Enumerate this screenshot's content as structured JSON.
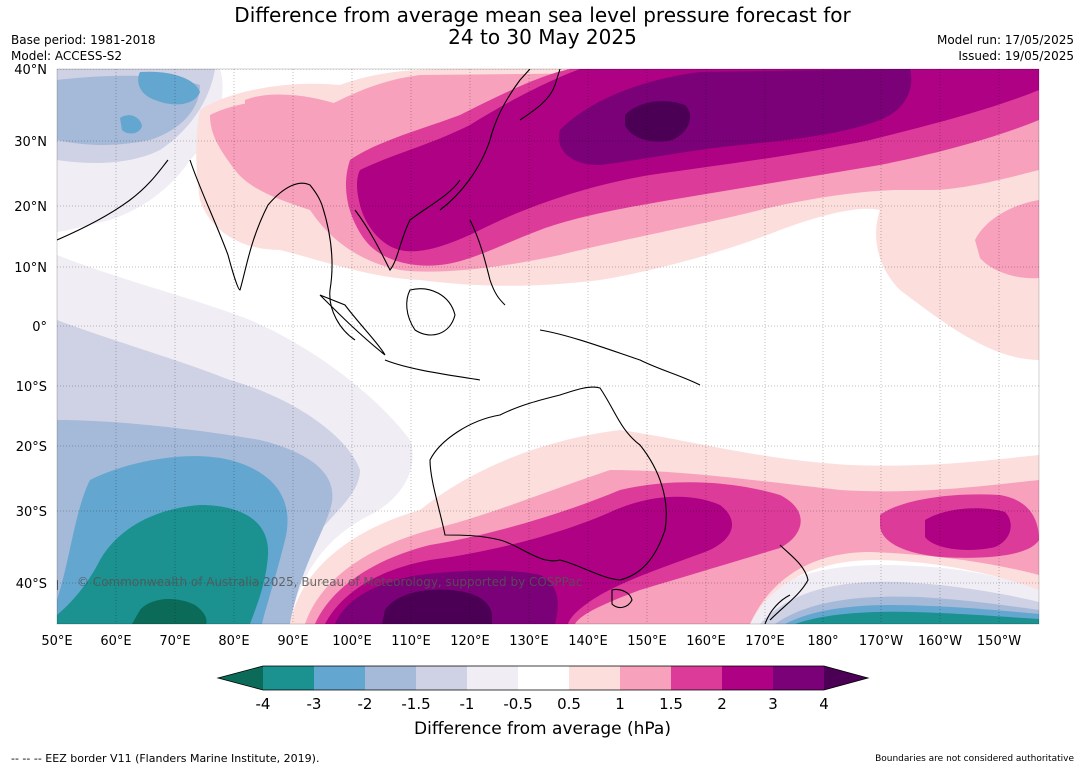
{
  "title_line1": "Difference from average mean sea level pressure forecast for",
  "title_line2": "24 to 30 May 2025",
  "base_period": "Base period: 1981-2018",
  "model": "Model: ACCESS-S2",
  "model_run": "Model run: 17/05/2025",
  "issued": "Issued: 19/05/2025",
  "copyright": "© Commonwealth of Australia 2025, Bureau of Meteorology, supported by COSPPac",
  "lat_labels": [
    "40°N",
    "30°N",
    "20°N",
    "10°N",
    "0°",
    "10°S",
    "20°S",
    "30°S",
    "40°S"
  ],
  "lon_labels": [
    "50°E",
    "60°E",
    "70°E",
    "80°E",
    "90°E",
    "100°E",
    "110°E",
    "120°E",
    "130°E",
    "140°E",
    "150°E",
    "160°E",
    "170°E",
    "180°",
    "170°W",
    "160°W",
    "150°W"
  ],
  "colorbar": {
    "tick_labels": [
      "-4",
      "-3",
      "-2",
      "-1.5",
      "-1",
      "-0.5",
      "0.5",
      "1",
      "1.5",
      "2",
      "3",
      "4"
    ],
    "colors": [
      "#0b6b58",
      "#1b9190",
      "#63a6cf",
      "#a5b9d8",
      "#cfd1e5",
      "#f0edf4",
      "#ffffff",
      "#fcdedd",
      "#f7a1bd",
      "#dc3b9a",
      "#ae0183",
      "#7a0177",
      "#4b0055"
    ],
    "title": "Difference from average (hPa)"
  },
  "footer_left": "--  --  -- EEZ border V11 (Flanders Marine Institute, 2019).",
  "footer_right": "Boundaries are not considered authoritative"
}
